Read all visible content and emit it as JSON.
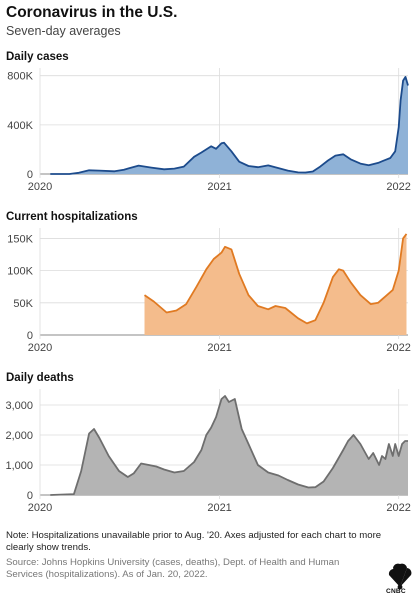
{
  "header": {
    "title": "Coronavirus in the U.S.",
    "subtitle": "Seven-day averages"
  },
  "chart_data": [
    {
      "type": "area",
      "title": "Daily cases",
      "fill": "#8fb2d7",
      "stroke": "#1c4b8c",
      "x_labels": [
        "2020",
        "2021",
        "2022"
      ],
      "xlim": [
        "2020-01-01",
        "2022-01-20"
      ],
      "y_ticks": [
        0,
        400000,
        800000
      ],
      "y_tick_labels": [
        "0",
        "400K",
        "800K"
      ],
      "ylim": [
        0,
        830000
      ],
      "grid": true,
      "x": [
        "2020-01-22",
        "2020-03-01",
        "2020-03-20",
        "2020-04-10",
        "2020-05-01",
        "2020-06-01",
        "2020-06-20",
        "2020-07-20",
        "2020-08-15",
        "2020-09-10",
        "2020-10-01",
        "2020-10-20",
        "2020-11-10",
        "2020-11-25",
        "2020-12-05",
        "2020-12-15",
        "2020-12-25",
        "2021-01-05",
        "2021-01-10",
        "2021-01-25",
        "2021-02-10",
        "2021-03-01",
        "2021-03-20",
        "2021-04-10",
        "2021-05-01",
        "2021-05-20",
        "2021-06-10",
        "2021-06-25",
        "2021-07-10",
        "2021-07-25",
        "2021-08-10",
        "2021-08-25",
        "2021-09-10",
        "2021-09-25",
        "2021-10-15",
        "2021-11-01",
        "2021-11-20",
        "2021-12-05",
        "2021-12-15",
        "2021-12-25",
        "2022-01-01",
        "2022-01-05",
        "2022-01-10",
        "2022-01-15",
        "2022-01-20"
      ],
      "values": [
        0,
        0,
        10000,
        30000,
        28000,
        22000,
        35000,
        68000,
        52000,
        38000,
        44000,
        60000,
        140000,
        175000,
        200000,
        225000,
        205000,
        250000,
        255000,
        185000,
        100000,
        65000,
        55000,
        70000,
        48000,
        28000,
        13000,
        12000,
        20000,
        60000,
        110000,
        150000,
        160000,
        120000,
        85000,
        72000,
        90000,
        115000,
        130000,
        185000,
        380000,
        600000,
        760000,
        790000,
        720000
      ]
    },
    {
      "type": "area",
      "title": "Current hospitalizations",
      "fill": "#f4bc8c",
      "stroke": "#e07a22",
      "x_labels": [
        "2020",
        "2021",
        "2022"
      ],
      "xlim": [
        "2020-01-01",
        "2022-01-20"
      ],
      "y_ticks": [
        0,
        50000,
        100000,
        150000
      ],
      "y_tick_labels": [
        "0",
        "50K",
        "100K",
        "150K"
      ],
      "ylim": [
        0,
        160000
      ],
      "grid": true,
      "x": [
        "2020-08-01",
        "2020-08-20",
        "2020-09-15",
        "2020-10-05",
        "2020-10-25",
        "2020-11-15",
        "2020-12-05",
        "2020-12-20",
        "2021-01-05",
        "2021-01-12",
        "2021-01-25",
        "2021-02-10",
        "2021-03-01",
        "2021-03-20",
        "2021-04-10",
        "2021-04-25",
        "2021-05-15",
        "2021-06-10",
        "2021-06-28",
        "2021-07-15",
        "2021-08-01",
        "2021-08-20",
        "2021-09-01",
        "2021-09-10",
        "2021-09-25",
        "2021-10-15",
        "2021-11-05",
        "2021-11-20",
        "2021-12-05",
        "2021-12-20",
        "2022-01-01",
        "2022-01-10",
        "2022-01-17"
      ],
      "values": [
        62000,
        52000,
        35000,
        38000,
        48000,
        75000,
        102000,
        118000,
        128000,
        137000,
        133000,
        95000,
        62000,
        45000,
        40000,
        45000,
        42000,
        26000,
        18000,
        23000,
        50000,
        90000,
        102000,
        100000,
        82000,
        62000,
        48000,
        50000,
        60000,
        70000,
        100000,
        150000,
        157000
      ]
    },
    {
      "type": "area",
      "title": "Daily deaths",
      "fill": "#b4b4b4",
      "stroke": "#6e6e6e",
      "x_labels": [
        "2020",
        "2021",
        "2022"
      ],
      "xlim": [
        "2020-01-01",
        "2022-01-20"
      ],
      "y_ticks": [
        0,
        1000,
        2000,
        3000
      ],
      "y_tick_labels": [
        "0",
        "1,000",
        "2,000",
        "3,000"
      ],
      "ylim": [
        0,
        3400
      ],
      "grid": true,
      "x": [
        "2020-01-22",
        "2020-03-10",
        "2020-03-25",
        "2020-04-10",
        "2020-04-20",
        "2020-05-01",
        "2020-05-20",
        "2020-06-10",
        "2020-06-28",
        "2020-07-10",
        "2020-07-25",
        "2020-08-10",
        "2020-08-25",
        "2020-09-10",
        "2020-10-01",
        "2020-10-20",
        "2020-11-10",
        "2020-11-25",
        "2020-12-05",
        "2020-12-15",
        "2020-12-25",
        "2021-01-05",
        "2021-01-12",
        "2021-01-20",
        "2021-02-01",
        "2021-02-15",
        "2021-03-01",
        "2021-03-20",
        "2021-04-10",
        "2021-05-01",
        "2021-05-20",
        "2021-06-10",
        "2021-07-01",
        "2021-07-15",
        "2021-08-01",
        "2021-08-20",
        "2021-09-10",
        "2021-09-20",
        "2021-10-01",
        "2021-10-15",
        "2021-11-01",
        "2021-11-10",
        "2021-11-22",
        "2021-11-28",
        "2021-12-05",
        "2021-12-12",
        "2021-12-20",
        "2021-12-25",
        "2022-01-01",
        "2022-01-08",
        "2022-01-14",
        "2022-01-20"
      ],
      "values": [
        0,
        30,
        800,
        2050,
        2200,
        1900,
        1300,
        800,
        600,
        720,
        1050,
        1000,
        950,
        850,
        750,
        800,
        1100,
        1500,
        2000,
        2250,
        2600,
        3200,
        3300,
        3100,
        3200,
        2200,
        1700,
        1000,
        750,
        650,
        500,
        350,
        250,
        260,
        450,
        900,
        1500,
        1800,
        2000,
        1700,
        1200,
        1400,
        1000,
        1300,
        1200,
        1700,
        1300,
        1700,
        1300,
        1700,
        1800,
        1800
      ]
    }
  ],
  "footer": {
    "note": "Note: Hospitalizations unavailable prior to Aug. '20. Axes adjusted for each chart to more clearly show trends.",
    "source": "Source: Johns Hopkins University (cases, deaths), Dept. of Health and Human Services (hospitalizations). As of Jan. 20, 2022.",
    "logo_text": "CNBC"
  }
}
